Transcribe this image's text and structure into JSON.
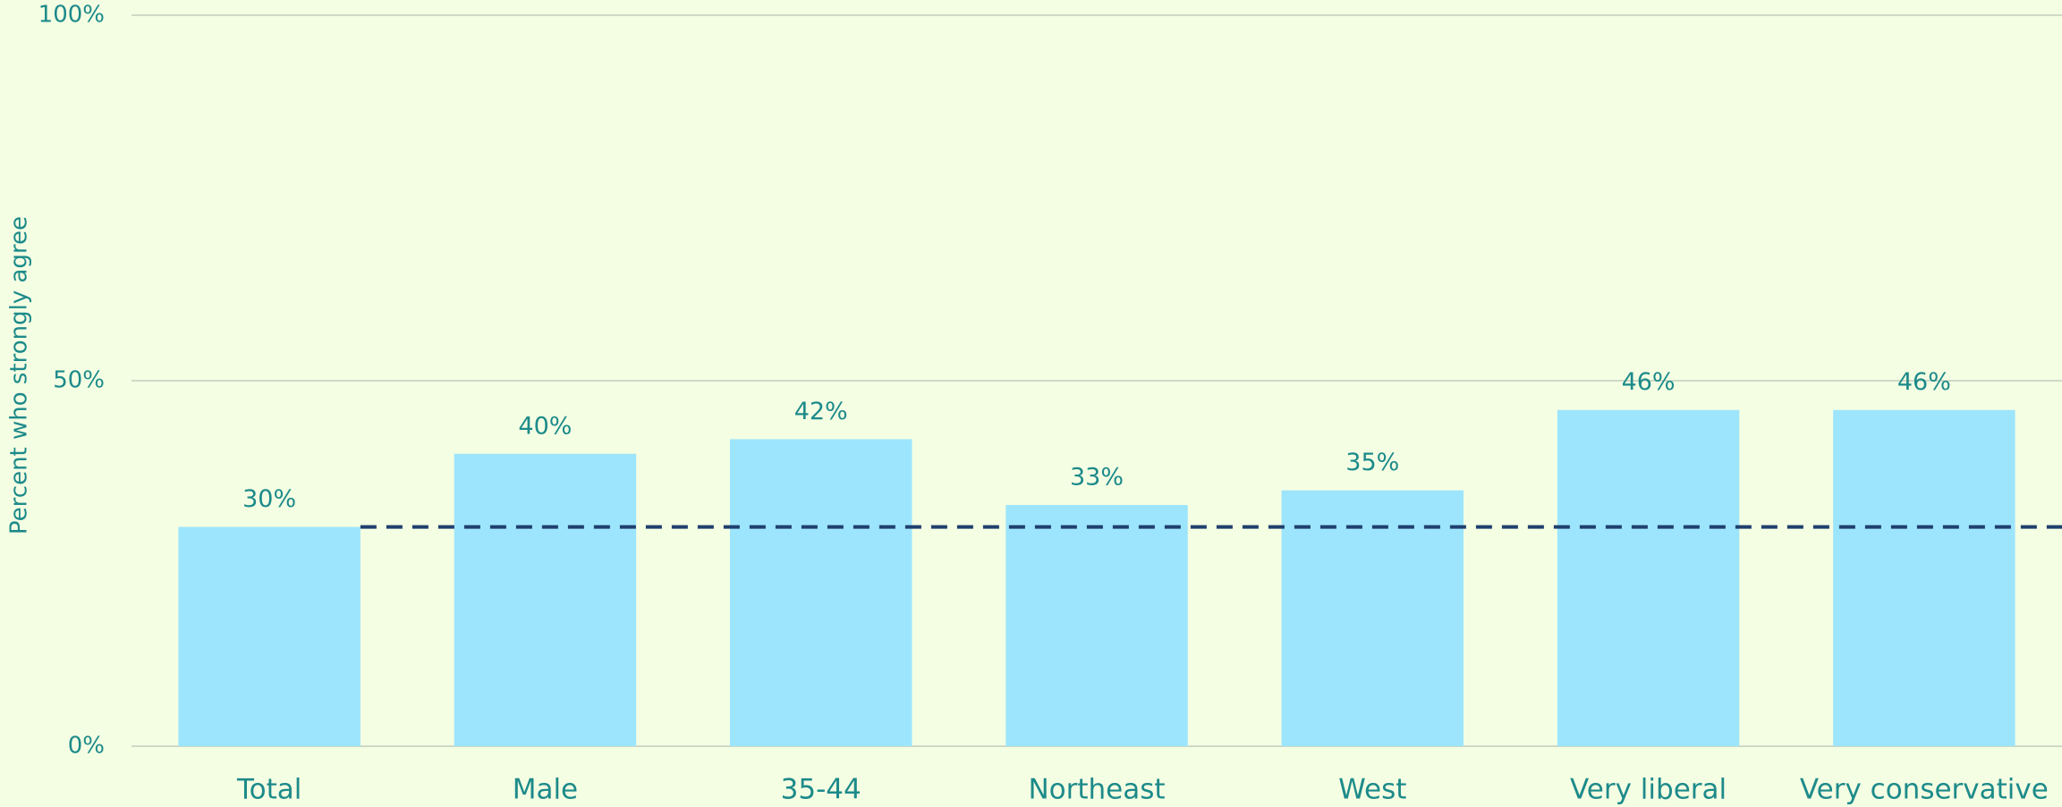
{
  "chart_data": {
    "type": "bar",
    "y_axis_label": "Percent who strongly agree",
    "categories": [
      "Total",
      "Male",
      "35-44",
      "Northeast",
      "West",
      "Very liberal",
      "Very conservative"
    ],
    "values": [
      30,
      40,
      42,
      33,
      35,
      46,
      46
    ],
    "value_labels": [
      "30%",
      "40%",
      "42%",
      "33%",
      "35%",
      "46%",
      "46%"
    ],
    "color": "#9de5fc",
    "ylim": [
      0,
      100
    ],
    "yticks": [
      {
        "value": 0,
        "label": "0%"
      },
      {
        "value": 50,
        "label": "50%"
      },
      {
        "value": 100,
        "label": "100%"
      }
    ],
    "grid": true,
    "reference_line": {
      "value": 30,
      "color": "#1f3f6e"
    }
  }
}
